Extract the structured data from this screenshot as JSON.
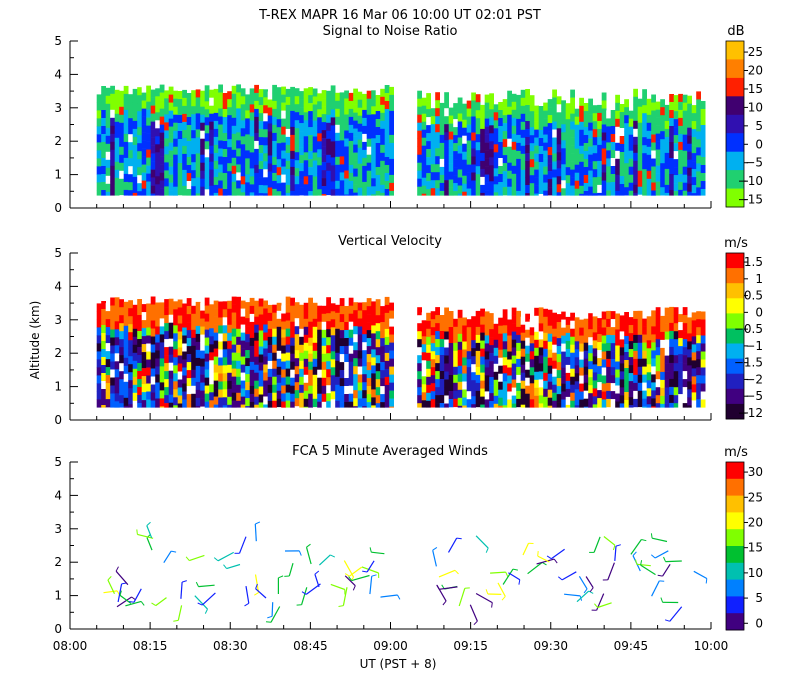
{
  "figure": {
    "title": "T-REX   MAPR 16 Mar 06   10:00 UT   02:01   PST",
    "ylabel": "Altitude (km)",
    "xlabel": "UT  (PST + 8)",
    "xticks": [
      "08:00",
      "08:15",
      "08:30",
      "08:45",
      "09:00",
      "09:15",
      "09:30",
      "09:45",
      "10:00"
    ]
  },
  "chart_data": [
    {
      "type": "heatmap",
      "title": "Signal to Noise Ratio",
      "units": "dB",
      "x_range_minutes": [
        480,
        600
      ],
      "ylim": [
        0,
        5
      ],
      "yticks": [
        "0",
        "1",
        "2",
        "3",
        "4",
        "5"
      ],
      "data_gap_ut": [
        "09:00",
        "09:05"
      ],
      "top_altitude_km": {
        "first_block": [
          3.4,
          3.7
        ],
        "second_block": [
          2.9,
          3.6
        ]
      },
      "colorbar": {
        "labels": [
          "25",
          "20",
          "15",
          "10",
          "5",
          "0",
          "−5",
          "−10",
          "−15"
        ],
        "colors": [
          "#ffc000",
          "#ff7f00",
          "#ff2000",
          "#400070",
          "#3010b0",
          "#0030ff",
          "#00b0f0",
          "#20d070",
          "#80ff00"
        ]
      }
    },
    {
      "type": "heatmap",
      "title": "Vertical Velocity",
      "units": "m/s",
      "x_range_minutes": [
        480,
        600
      ],
      "ylim": [
        0,
        5
      ],
      "yticks": [
        "0",
        "1",
        "2",
        "3",
        "4",
        "5"
      ],
      "data_gap_ut": [
        "09:00",
        "09:05"
      ],
      "top_altitude_km": {
        "first_block": [
          3.4,
          3.7
        ],
        "second_block": [
          3.0,
          3.4
        ]
      },
      "colorbar": {
        "labels": [
          "1.5",
          "1",
          "0.5",
          "0",
          "−0.5",
          "−1",
          "−1.5",
          "−2",
          "−5",
          "−12"
        ],
        "colors": [
          "#ff0000",
          "#ff7000",
          "#ffc000",
          "#ffff00",
          "#80ff00",
          "#00c060",
          "#00b0f0",
          "#0060ff",
          "#2020c0",
          "#400080",
          "#200030"
        ]
      }
    },
    {
      "type": "scatter",
      "title": "FCA 5 Minute Averaged Winds",
      "units": "m/s",
      "x_range_minutes": [
        480,
        600
      ],
      "ylim": [
        0,
        5
      ],
      "yticks": [
        "0",
        "1",
        "2",
        "3",
        "4",
        "5"
      ],
      "barb_rows_km": [
        0.75,
        1.0,
        1.3,
        1.65,
        1.95,
        2.3,
        2.7
      ],
      "colorbar": {
        "labels": [
          "30",
          "25",
          "20",
          "15",
          "10",
          "5",
          "0"
        ],
        "colors": [
          "#ff0000",
          "#ff7000",
          "#ffc000",
          "#ffff00",
          "#80ff00",
          "#00c030",
          "#00c0b0",
          "#0080ff",
          "#1020ff",
          "#400080"
        ]
      }
    }
  ]
}
